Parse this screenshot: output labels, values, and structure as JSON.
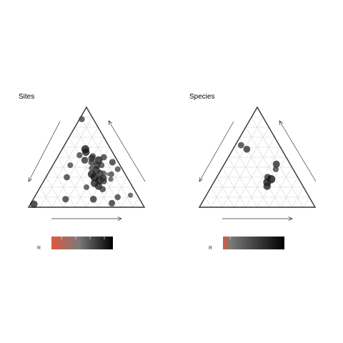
{
  "chart_data": [
    {
      "type": "scatter",
      "subtype": "ternary",
      "title": "Sites",
      "grid": true,
      "grid_divisions": 10,
      "legend": {
        "label": "R",
        "placement": "bottom-left",
        "gradient": [
          "#e0573d",
          "#7a7a7a",
          "#000000"
        ]
      },
      "axis_arrows": [
        "left-down",
        "right-up",
        "bottom-right"
      ],
      "points": [
        {
          "a": 0.02,
          "b": 0.88,
          "r": 0.55
        },
        {
          "a": 0.4,
          "b": 0.5,
          "r": 0.6
        },
        {
          "a": 0.5,
          "b": 0.45,
          "r": 0.65
        },
        {
          "a": 0.42,
          "b": 0.42,
          "r": 0.55
        },
        {
          "a": 0.45,
          "b": 0.34,
          "r": 0.7
        },
        {
          "a": 0.48,
          "b": 0.34,
          "r": 0.4
        },
        {
          "a": 0.55,
          "b": 0.33,
          "r": 0.5
        },
        {
          "a": 0.3,
          "b": 0.51,
          "r": 0.55
        },
        {
          "a": 0.37,
          "b": 0.47,
          "r": 0.85
        },
        {
          "a": 0.38,
          "b": 0.42,
          "r": 0.75
        },
        {
          "a": 0.22,
          "b": 0.55,
          "r": 0.8
        },
        {
          "a": 0.2,
          "b": 0.58,
          "r": 0.9
        },
        {
          "a": 0.3,
          "b": 0.49,
          "r": 0.7
        },
        {
          "a": 0.32,
          "b": 0.45,
          "r": 0.65
        },
        {
          "a": 0.4,
          "b": 0.37,
          "r": 0.8
        },
        {
          "a": 0.38,
          "b": 0.33,
          "r": 0.85
        },
        {
          "a": 0.42,
          "b": 0.3,
          "r": 0.9
        },
        {
          "a": 0.45,
          "b": 0.24,
          "r": 0.85
        },
        {
          "a": 0.48,
          "b": 0.27,
          "r": 0.95
        },
        {
          "a": 0.5,
          "b": 0.21,
          "r": 0.8
        },
        {
          "a": 0.5,
          "b": 0.29,
          "r": 0.75
        },
        {
          "a": 0.52,
          "b": 0.26,
          "r": 0.6
        },
        {
          "a": 0.52,
          "b": 0.33,
          "r": 0.15
        },
        {
          "a": 0.35,
          "b": 0.39,
          "r": 0.5
        },
        {
          "a": 0.25,
          "b": 0.47,
          "r": 0.7
        },
        {
          "a": 0.18,
          "b": 0.52,
          "r": 0.55
        },
        {
          "a": 0.15,
          "b": 0.42,
          "r": 0.5
        },
        {
          "a": 0.18,
          "b": 0.3,
          "r": 0.6
        },
        {
          "a": 0.28,
          "b": 0.08,
          "r": 0.65
        },
        {
          "a": 0.52,
          "b": 0.08,
          "r": 0.7
        },
        {
          "a": 0.55,
          "b": 0.18,
          "r": 0.6
        },
        {
          "a": 0.72,
          "b": 0.1,
          "r": 0.55
        },
        {
          "a": 0.7,
          "b": 0.04,
          "r": 0.65
        },
        {
          "a": 0.57,
          "b": 0.28,
          "r": 0.4
        },
        {
          "a": 0.4,
          "b": 0.2,
          "r": 0.5
        },
        {
          "a": 0.03,
          "b": 0.03,
          "r": 0.8
        },
        {
          "a": 0.82,
          "b": 0.12,
          "r": 0.4
        },
        {
          "a": 0.58,
          "b": 0.38,
          "r": 0.5
        }
      ]
    },
    {
      "type": "scatter",
      "subtype": "ternary",
      "title": "Species",
      "grid": true,
      "grid_divisions": 10,
      "legend": {
        "label": "R",
        "placement": "bottom-left",
        "gradient": [
          "#e0573d",
          "#7a7a7a",
          "#000000"
        ]
      },
      "axis_arrows": [
        "left-down",
        "right-up",
        "bottom-right"
      ],
      "points": [
        {
          "a": 0.05,
          "b": 0.62,
          "r": 0.6
        },
        {
          "a": 0.12,
          "b": 0.58,
          "r": 0.7
        },
        {
          "a": 0.45,
          "b": 0.43,
          "r": 0.75
        },
        {
          "a": 0.47,
          "b": 0.38,
          "r": 0.55
        },
        {
          "a": 0.44,
          "b": 0.3,
          "r": 0.7
        },
        {
          "a": 0.48,
          "b": 0.28,
          "r": 0.95
        },
        {
          "a": 0.46,
          "b": 0.25,
          "r": 0.85
        },
        {
          "a": 0.48,
          "b": 0.21,
          "r": 0.8
        }
      ]
    }
  ]
}
